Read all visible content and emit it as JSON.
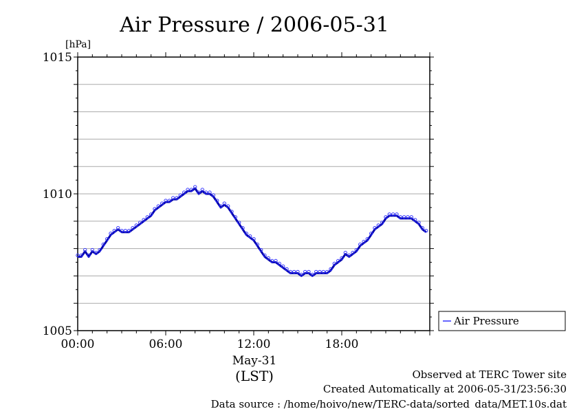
{
  "chart_data": {
    "type": "line",
    "title": "Air Pressure / 2006-05-31",
    "ylabel": "[hPa]",
    "xlabel": "(LST)",
    "date_label": "May-31",
    "ylim": [
      1005,
      1015
    ],
    "xlim": [
      0,
      24
    ],
    "x_unit": "hours (LST)",
    "y_ticks": [
      {
        "value": 1005,
        "label": "1005"
      },
      {
        "value": 1010,
        "label": "1010"
      },
      {
        "value": 1015,
        "label": "1015"
      }
    ],
    "y_grid": [
      1006,
      1007,
      1008,
      1009,
      1011,
      1012,
      1013,
      1014
    ],
    "x_ticks": [
      {
        "value": 0,
        "label": "00:00"
      },
      {
        "value": 6,
        "label": "06:00"
      },
      {
        "value": 12,
        "label": "12:00"
      },
      {
        "value": 18,
        "label": "18:00"
      }
    ],
    "grid": true,
    "legend_position": "right",
    "series": [
      {
        "name": "Air Pressure",
        "color": "#3333ff",
        "line_color": "#0000aa",
        "x": [
          0.0,
          0.25,
          0.5,
          0.75,
          1.0,
          1.25,
          1.5,
          1.75,
          2.0,
          2.25,
          2.5,
          2.75,
          3.0,
          3.25,
          3.5,
          3.75,
          4.0,
          4.25,
          4.5,
          4.75,
          5.0,
          5.25,
          5.5,
          5.75,
          6.0,
          6.25,
          6.5,
          6.75,
          7.0,
          7.25,
          7.5,
          7.75,
          8.0,
          8.25,
          8.5,
          8.75,
          9.0,
          9.25,
          9.5,
          9.75,
          10.0,
          10.25,
          10.5,
          10.75,
          11.0,
          11.25,
          11.5,
          11.75,
          12.0,
          12.25,
          12.5,
          12.75,
          13.0,
          13.25,
          13.5,
          13.75,
          14.0,
          14.25,
          14.5,
          14.75,
          15.0,
          15.25,
          15.5,
          15.75,
          16.0,
          16.25,
          16.5,
          16.75,
          17.0,
          17.25,
          17.5,
          17.75,
          18.0,
          18.25,
          18.5,
          18.75,
          19.0,
          19.25,
          19.5,
          19.75,
          20.0,
          20.25,
          20.5,
          20.75,
          21.0,
          21.25,
          21.5,
          21.75,
          22.0,
          22.25,
          22.5,
          22.75,
          23.0,
          23.25,
          23.5,
          23.75
        ],
        "values": [
          1007.7,
          1007.7,
          1007.9,
          1007.7,
          1007.9,
          1007.8,
          1007.9,
          1008.1,
          1008.3,
          1008.5,
          1008.6,
          1008.7,
          1008.6,
          1008.6,
          1008.6,
          1008.7,
          1008.8,
          1008.9,
          1009.0,
          1009.1,
          1009.2,
          1009.4,
          1009.5,
          1009.6,
          1009.7,
          1009.7,
          1009.8,
          1009.8,
          1009.9,
          1010.0,
          1010.1,
          1010.1,
          1010.2,
          1010.0,
          1010.1,
          1010.0,
          1010.0,
          1009.9,
          1009.7,
          1009.5,
          1009.6,
          1009.5,
          1009.3,
          1009.1,
          1008.9,
          1008.7,
          1008.5,
          1008.4,
          1008.3,
          1008.1,
          1007.9,
          1007.7,
          1007.6,
          1007.5,
          1007.5,
          1007.4,
          1007.3,
          1007.2,
          1007.1,
          1007.1,
          1007.1,
          1007.0,
          1007.1,
          1007.1,
          1007.0,
          1007.1,
          1007.1,
          1007.1,
          1007.1,
          1007.2,
          1007.4,
          1007.5,
          1007.6,
          1007.8,
          1007.7,
          1007.8,
          1007.9,
          1008.1,
          1008.2,
          1008.3,
          1008.5,
          1008.7,
          1008.8,
          1008.9,
          1009.1,
          1009.2,
          1009.2,
          1009.2,
          1009.1,
          1009.1,
          1009.1,
          1009.1,
          1009.0,
          1008.9,
          1008.7,
          1008.6
        ]
      }
    ]
  },
  "footer": {
    "line1": "Observed at TERC Tower site",
    "line2": "Created Automatically at 2006-05-31/23:56:30",
    "line3": "Data source : /home/hoivo/new/TERC-data/sorted_data/MET.10s.dat"
  }
}
